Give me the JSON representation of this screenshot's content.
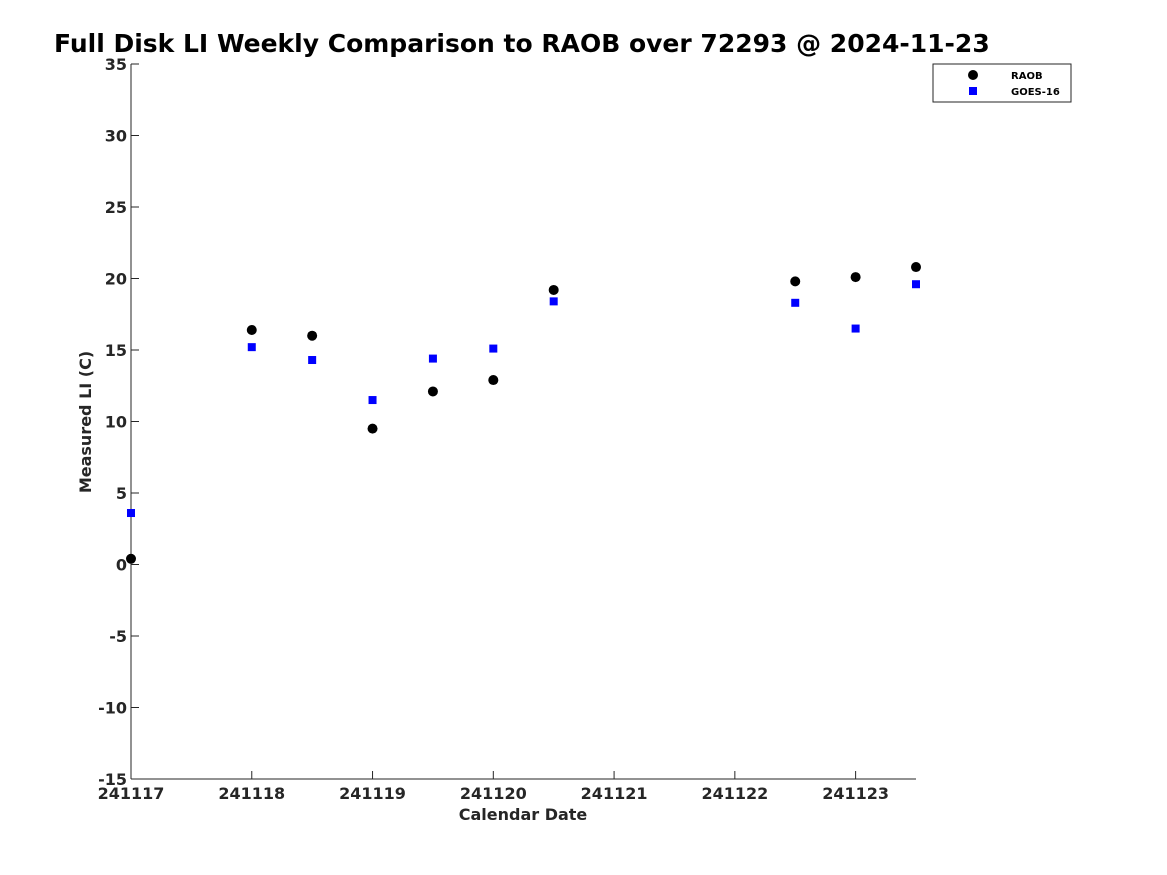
{
  "chart_data": {
    "type": "scatter",
    "title": "Full Disk LI Weekly Comparison to RAOB over 72293 @ 2024-11-23",
    "xlabel": "Calendar Date",
    "ylabel": "Measured LI (C)",
    "xlim": [
      "241117",
      "241123.5"
    ],
    "ylim": [
      -15,
      35
    ],
    "x_ticks": [
      "241117",
      "241118",
      "241119",
      "241120",
      "241121",
      "241122",
      "241123"
    ],
    "y_ticks": [
      "-15",
      "-10",
      "-5",
      "0",
      "5",
      "10",
      "15",
      "20",
      "25",
      "30",
      "35"
    ],
    "grid": false,
    "legend_position": "top-right",
    "series": [
      {
        "name": "RAOB",
        "marker": "circle",
        "color": "#000000",
        "points": [
          {
            "x": "241117 00Z",
            "y": 0.4
          },
          {
            "x": "241118 00Z",
            "y": 16.4
          },
          {
            "x": "241118 12Z",
            "y": 16.0
          },
          {
            "x": "241119 00Z",
            "y": 9.5
          },
          {
            "x": "241119 12Z",
            "y": 12.1
          },
          {
            "x": "241120 00Z",
            "y": 12.9
          },
          {
            "x": "241120 12Z",
            "y": 19.2
          },
          {
            "x": "241122 12Z",
            "y": 19.8
          },
          {
            "x": "241123 00Z",
            "y": 20.1
          },
          {
            "x": "241123 12Z",
            "y": 20.8
          }
        ]
      },
      {
        "name": "GOES-16",
        "marker": "square",
        "color": "#0000ff",
        "points": [
          {
            "x": "241117 00Z",
            "y": 3.6
          },
          {
            "x": "241118 00Z",
            "y": 15.2
          },
          {
            "x": "241118 12Z",
            "y": 14.3
          },
          {
            "x": "241119 00Z",
            "y": 11.5
          },
          {
            "x": "241119 12Z",
            "y": 14.4
          },
          {
            "x": "241120 00Z",
            "y": 15.1
          },
          {
            "x": "241120 12Z",
            "y": 18.4
          },
          {
            "x": "241122 12Z",
            "y": 18.3
          },
          {
            "x": "241123 00Z",
            "y": 16.5
          },
          {
            "x": "241123 12Z",
            "y": 19.6
          }
        ]
      }
    ]
  }
}
